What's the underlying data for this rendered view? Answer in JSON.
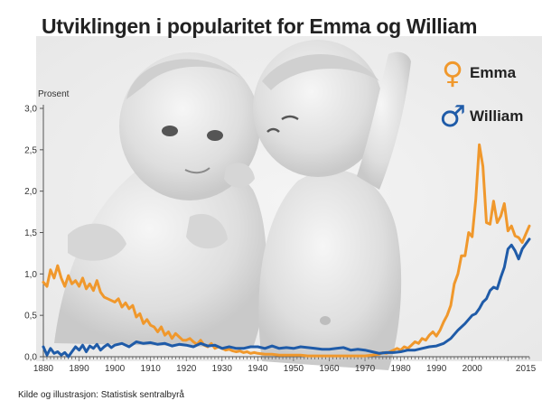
{
  "title": "Utviklingen i  popularitet for Emma og William",
  "source": "Kilde og illustrasjon: Statistisk sentralbyrå",
  "colors": {
    "emma": "#F0982C",
    "william": "#1F5BA8",
    "axis": "#555555"
  },
  "legend": [
    {
      "name": "Emma",
      "glyph": "♀",
      "color": "#F0982C",
      "icon": "female-symbol-icon"
    },
    {
      "name": "William",
      "glyph": "♂",
      "color": "#1F5BA8",
      "icon": "male-symbol-icon"
    }
  ],
  "chart_data": {
    "type": "line",
    "title": "Utviklingen i  popularitet for Emma og William",
    "ylabel": "Prosent",
    "xlabel": "",
    "xlim": [
      1880,
      2016
    ],
    "ylim": [
      0,
      3.0
    ],
    "yticks": [
      "0,0",
      "0,5",
      "1,0",
      "1,5",
      "2,0",
      "2,5",
      "3,0"
    ],
    "ytick_values": [
      0,
      0.5,
      1.0,
      1.5,
      2.0,
      2.5,
      3.0
    ],
    "xticks": [
      "1880",
      "1890",
      "1900",
      "1910",
      "1920",
      "1930",
      "1940",
      "1950",
      "1960",
      "1970",
      "1980",
      "1990",
      "2000",
      "2015"
    ],
    "xtick_values": [
      1880,
      1890,
      1900,
      1910,
      1920,
      1930,
      1940,
      1950,
      1960,
      1970,
      1980,
      1990,
      2000,
      2015
    ],
    "grid": false,
    "legend_position": "top-right",
    "series": [
      {
        "name": "Emma",
        "color": "#F0982C",
        "x": [
          1880,
          1881,
          1882,
          1883,
          1884,
          1885,
          1886,
          1887,
          1888,
          1889,
          1890,
          1891,
          1892,
          1893,
          1894,
          1895,
          1896,
          1897,
          1898,
          1899,
          1900,
          1901,
          1902,
          1903,
          1904,
          1905,
          1906,
          1907,
          1908,
          1909,
          1910,
          1911,
          1912,
          1913,
          1914,
          1915,
          1916,
          1917,
          1918,
          1919,
          1920,
          1921,
          1922,
          1923,
          1924,
          1925,
          1926,
          1927,
          1928,
          1929,
          1930,
          1931,
          1932,
          1933,
          1934,
          1935,
          1936,
          1937,
          1938,
          1939,
          1940,
          1942,
          1944,
          1946,
          1948,
          1950,
          1952,
          1954,
          1956,
          1958,
          1960,
          1962,
          1964,
          1966,
          1968,
          1970,
          1972,
          1974,
          1975,
          1976,
          1977,
          1978,
          1979,
          1980,
          1981,
          1982,
          1983,
          1984,
          1985,
          1986,
          1987,
          1988,
          1989,
          1990,
          1991,
          1992,
          1993,
          1994,
          1995,
          1996,
          1997,
          1998,
          1999,
          2000,
          2001,
          2002,
          2003,
          2004,
          2005,
          2006,
          2007,
          2008,
          2009,
          2010,
          2011,
          2012,
          2013,
          2014,
          2015,
          2016
        ],
        "y": [
          0.9,
          0.85,
          1.05,
          0.95,
          1.1,
          0.95,
          0.85,
          0.98,
          0.88,
          0.92,
          0.85,
          0.95,
          0.82,
          0.88,
          0.8,
          0.92,
          0.78,
          0.72,
          0.7,
          0.68,
          0.66,
          0.7,
          0.6,
          0.65,
          0.58,
          0.62,
          0.48,
          0.52,
          0.4,
          0.45,
          0.38,
          0.36,
          0.3,
          0.36,
          0.26,
          0.3,
          0.22,
          0.28,
          0.24,
          0.2,
          0.2,
          0.22,
          0.18,
          0.15,
          0.2,
          0.14,
          0.12,
          0.16,
          0.1,
          0.12,
          0.1,
          0.08,
          0.09,
          0.07,
          0.06,
          0.07,
          0.05,
          0.06,
          0.04,
          0.05,
          0.04,
          0.03,
          0.03,
          0.02,
          0.02,
          0.02,
          0.02,
          0.01,
          0.01,
          0.01,
          0.01,
          0.01,
          0.01,
          0.01,
          0.01,
          0.01,
          0.02,
          0.03,
          0.05,
          0.04,
          0.06,
          0.08,
          0.1,
          0.08,
          0.12,
          0.1,
          0.14,
          0.18,
          0.16,
          0.22,
          0.2,
          0.26,
          0.3,
          0.25,
          0.32,
          0.42,
          0.5,
          0.62,
          0.88,
          1.0,
          1.22,
          1.22,
          1.5,
          1.45,
          1.9,
          2.56,
          2.3,
          1.62,
          1.6,
          1.88,
          1.62,
          1.7,
          1.85,
          1.52,
          1.58,
          1.46,
          1.44,
          1.38,
          1.48,
          1.58
        ]
      },
      {
        "name": "William",
        "color": "#1F5BA8",
        "x": [
          1880,
          1881,
          1882,
          1883,
          1884,
          1885,
          1886,
          1887,
          1888,
          1889,
          1890,
          1891,
          1892,
          1893,
          1894,
          1895,
          1896,
          1897,
          1898,
          1899,
          1900,
          1902,
          1904,
          1906,
          1908,
          1910,
          1912,
          1914,
          1916,
          1918,
          1920,
          1922,
          1924,
          1926,
          1928,
          1930,
          1932,
          1934,
          1936,
          1938,
          1940,
          1942,
          1944,
          1946,
          1948,
          1950,
          1952,
          1954,
          1956,
          1958,
          1960,
          1962,
          1964,
          1966,
          1968,
          1970,
          1972,
          1974,
          1976,
          1978,
          1980,
          1982,
          1984,
          1986,
          1988,
          1990,
          1992,
          1994,
          1996,
          1998,
          2000,
          2001,
          2002,
          2003,
          2004,
          2005,
          2006,
          2007,
          2008,
          2009,
          2010,
          2011,
          2012,
          2013,
          2014,
          2015,
          2016
        ],
        "y": [
          0.12,
          0.02,
          0.1,
          0.04,
          0.06,
          0.02,
          0.05,
          0.0,
          0.06,
          0.12,
          0.08,
          0.14,
          0.06,
          0.13,
          0.1,
          0.15,
          0.08,
          0.12,
          0.15,
          0.11,
          0.14,
          0.16,
          0.12,
          0.18,
          0.16,
          0.17,
          0.15,
          0.16,
          0.13,
          0.15,
          0.14,
          0.12,
          0.16,
          0.13,
          0.14,
          0.1,
          0.12,
          0.1,
          0.1,
          0.12,
          0.12,
          0.1,
          0.13,
          0.1,
          0.11,
          0.1,
          0.12,
          0.11,
          0.1,
          0.09,
          0.09,
          0.1,
          0.11,
          0.08,
          0.09,
          0.08,
          0.06,
          0.04,
          0.05,
          0.05,
          0.06,
          0.08,
          0.08,
          0.1,
          0.12,
          0.13,
          0.16,
          0.22,
          0.32,
          0.4,
          0.5,
          0.52,
          0.58,
          0.66,
          0.7,
          0.8,
          0.84,
          0.82,
          0.96,
          1.08,
          1.3,
          1.35,
          1.28,
          1.18,
          1.3,
          1.36,
          1.42
        ]
      }
    ]
  }
}
